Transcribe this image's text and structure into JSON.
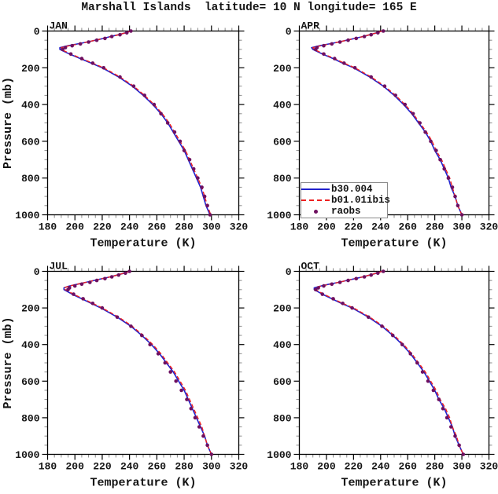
{
  "chart_data": {
    "type": "line",
    "title": "Marshall Islands  latitude= 10 N longitude= 165 E",
    "xlabel": "Temperature (K)",
    "ylabel": "Pressure (mb)",
    "xlim": [
      180,
      320
    ],
    "ylim": [
      0,
      1000
    ],
    "y_axis_direction": "reversed (0 mb at top)",
    "grid": "off",
    "x_major_ticks": [
      180,
      200,
      220,
      240,
      260,
      280,
      300,
      320
    ],
    "x_minor_step": 5,
    "y_major_ticks": [
      0,
      200,
      400,
      600,
      800,
      1000
    ],
    "y_minor_step": 50,
    "legend": {
      "position": "bottom-left of APR panel",
      "entries": [
        {
          "label": "b30.004",
          "color": "#2222cc",
          "style": "solid-line"
        },
        {
          "label": "b01.01ibis",
          "color": "#ee2020",
          "style": "dashed-line"
        },
        {
          "label": "raobs",
          "color": "#6e1060",
          "style": "dot"
        }
      ]
    },
    "pressure_levels_mb": [
      0,
      10,
      20,
      30,
      40,
      50,
      60,
      70,
      80,
      90,
      100,
      125,
      150,
      175,
      200,
      250,
      300,
      350,
      400,
      450,
      500,
      550,
      600,
      650,
      700,
      750,
      800,
      850,
      900,
      950,
      1000
    ],
    "panels": [
      {
        "label": "JAN",
        "series": {
          "b30_004": [
            241,
            237,
            232,
            226,
            221,
            215,
            209,
            202,
            195,
            189,
            189,
            196,
            204,
            212,
            220,
            232,
            242,
            250,
            257,
            263,
            268,
            272,
            276,
            280,
            283,
            286,
            289,
            292,
            294,
            296,
            299
          ],
          "b01_01ibis": [
            241,
            237,
            232,
            227,
            221,
            215,
            209,
            203,
            196,
            190,
            190,
            197,
            205,
            213,
            221,
            233,
            243,
            251,
            258,
            264,
            269,
            273,
            277,
            281,
            284,
            287,
            290,
            293,
            295,
            297,
            299.5
          ],
          "raobs": [
            241,
            238,
            233,
            227,
            222,
            216,
            210,
            204,
            198,
            193,
            191,
            197,
            205,
            213,
            221,
            233,
            243,
            251,
            258,
            263,
            268,
            273,
            277,
            280,
            284,
            287,
            290,
            293,
            295,
            297,
            299
          ]
        }
      },
      {
        "label": "APR",
        "series": {
          "b30_004": [
            241,
            237,
            232,
            227,
            221,
            215,
            209,
            202,
            195,
            189,
            190,
            197,
            205,
            212,
            220,
            232,
            242,
            250,
            257,
            263,
            268,
            273,
            277,
            280,
            284,
            287,
            290,
            292,
            295,
            297,
            300
          ],
          "b01_01ibis": [
            241,
            237,
            232,
            227,
            221,
            215,
            209,
            203,
            196,
            190,
            191,
            198,
            206,
            213,
            221,
            233,
            243,
            251,
            258,
            264,
            269,
            274,
            278,
            281,
            285,
            288,
            291,
            293,
            295,
            297,
            300
          ],
          "raobs": [
            242,
            238,
            233,
            228,
            222,
            216,
            210,
            204,
            198,
            193,
            192,
            198,
            206,
            213,
            221,
            233,
            243,
            251,
            258,
            264,
            269,
            273,
            277,
            281,
            284,
            287,
            290,
            293,
            295,
            297,
            300
          ]
        }
      },
      {
        "label": "JUL",
        "series": {
          "b30_004": [
            240,
            236,
            231,
            226,
            220,
            214,
            208,
            202,
            196,
            192,
            192,
            198,
            205,
            212,
            219,
            231,
            241,
            249,
            256,
            262,
            267,
            272,
            276,
            280,
            283,
            286,
            289,
            292,
            295,
            297,
            300
          ],
          "b01_01ibis": [
            240,
            236,
            231,
            226,
            220,
            214,
            208,
            202,
            196,
            192,
            193,
            199,
            206,
            213,
            220,
            232,
            242,
            250,
            257,
            263,
            268,
            273,
            277,
            281,
            284,
            287,
            290,
            293,
            295,
            297,
            300
          ],
          "raobs": [
            240,
            237,
            232,
            227,
            222,
            216,
            211,
            205,
            200,
            196,
            195,
            199,
            206,
            213,
            220,
            231,
            241,
            249,
            255,
            261,
            266,
            270,
            274,
            278,
            282,
            285,
            288,
            291,
            294,
            297,
            300
          ]
        }
      },
      {
        "label": "OCT",
        "series": {
          "b30_004": [
            241,
            237,
            232,
            227,
            221,
            215,
            209,
            202,
            196,
            191,
            191,
            197,
            204,
            211,
            219,
            231,
            241,
            249,
            256,
            262,
            267,
            272,
            276,
            280,
            283,
            287,
            290,
            293,
            295,
            298,
            301
          ],
          "b01_01ibis": [
            241,
            237,
            232,
            227,
            221,
            215,
            209,
            203,
            196,
            192,
            192,
            198,
            205,
            212,
            220,
            232,
            242,
            250,
            257,
            263,
            268,
            273,
            277,
            281,
            284,
            288,
            291,
            293,
            296,
            298,
            301
          ],
          "raobs": [
            242,
            238,
            233,
            228,
            222,
            216,
            210,
            204,
            198,
            194,
            192,
            197,
            205,
            212,
            219,
            231,
            241,
            249,
            256,
            262,
            267,
            271,
            275,
            279,
            283,
            286,
            289,
            292,
            295,
            298,
            301
          ]
        }
      }
    ]
  },
  "colors": {
    "b30_004": "#2222cc",
    "b01_01ibis": "#ee2020",
    "raobs": "#6e1060",
    "frame": "#000000",
    "minor_tick": "#8c8c8c",
    "legend_border": "#8a8a8a",
    "background": "#ffffff"
  }
}
